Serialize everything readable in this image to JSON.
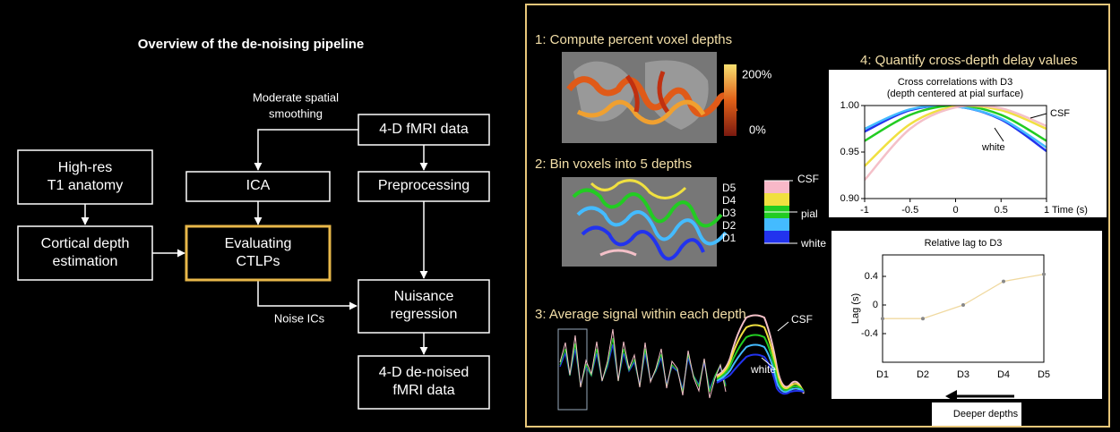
{
  "left": {
    "title": "Overview of the de-noising pipeline",
    "nodes": [
      {
        "lines": [
          "4-D fMRI data"
        ]
      },
      {
        "lines": [
          "High-res",
          "T1 anatomy"
        ]
      },
      {
        "lines": [
          "ICA"
        ]
      },
      {
        "lines": [
          "Preprocessing"
        ]
      },
      {
        "lines": [
          "Cortical depth",
          "estimation"
        ]
      },
      {
        "lines": [
          "Evaluating",
          "CTLPs"
        ]
      },
      {
        "lines": [
          "Nuisance",
          "regression"
        ]
      },
      {
        "lines": [
          "4-D de-noised",
          "fMRI data"
        ]
      }
    ],
    "edge_labels": [
      [
        "Moderate spatial",
        "smoothing"
      ],
      [
        "Noise ICs"
      ]
    ]
  },
  "right": {
    "steps": [
      "1: Compute percent voxel depths",
      "2: Bin voxels into 5 depths",
      "3: Average signal within each depth",
      "4: Quantify cross-depth delay values"
    ],
    "colorbar": {
      "max_label": "200%",
      "min_label": "0%"
    },
    "depth_legend": {
      "depths": [
        "D5",
        "D4",
        "D3",
        "D2",
        "D1"
      ],
      "markers": [
        "CSF",
        "pial",
        "white"
      ]
    },
    "signal_labels": [
      "CSF",
      "white"
    ],
    "xcorr_chart": {
      "type": "line",
      "title": [
        "Cross correlations with D3",
        "(depth centered at pial surface)"
      ],
      "x_label": "Time (s)",
      "x": [
        -1,
        -0.5,
        0,
        0.5,
        1
      ],
      "series": [
        {
          "color": "#2233ee",
          "values": [
            0.972,
            0.995,
            0.999,
            0.985,
            0.951
          ]
        },
        {
          "color": "#44bbff",
          "values": [
            0.975,
            0.996,
            0.999,
            0.986,
            0.955
          ]
        },
        {
          "color": "#22cc22",
          "values": [
            0.962,
            0.99,
            1.0,
            0.99,
            0.962
          ]
        },
        {
          "color": "#f0e040",
          "values": [
            0.935,
            0.98,
            0.999,
            0.995,
            0.975
          ]
        },
        {
          "color": "#f4c0c8",
          "values": [
            0.92,
            0.975,
            0.998,
            0.997,
            0.978
          ]
        }
      ],
      "annotations": [
        "CSF",
        "white"
      ],
      "xlim": [
        -1,
        1
      ],
      "xticks": [
        -1,
        -0.5,
        0,
        0.5,
        1
      ],
      "ylim": [
        0.9,
        1.0
      ],
      "yticks": [
        {
          "value": 0.9,
          "label": "0.90"
        },
        {
          "value": 0.95,
          "label": "0.95"
        },
        {
          "value": 1.0,
          "label": "1.00"
        }
      ]
    },
    "lag_chart": {
      "type": "line",
      "title": "Relative lag to D3",
      "y_label": "Lag (s)",
      "categories": [
        "D1",
        "D2",
        "D3",
        "D4",
        "D5"
      ],
      "values": [
        -0.19,
        -0.19,
        0,
        0.33,
        0.43
      ],
      "color": "#f0d9a0",
      "ylim": [
        -0.8,
        0.7
      ],
      "yticks": [
        -0.4,
        0,
        0.4
      ],
      "annotation": "Deeper depths"
    }
  }
}
